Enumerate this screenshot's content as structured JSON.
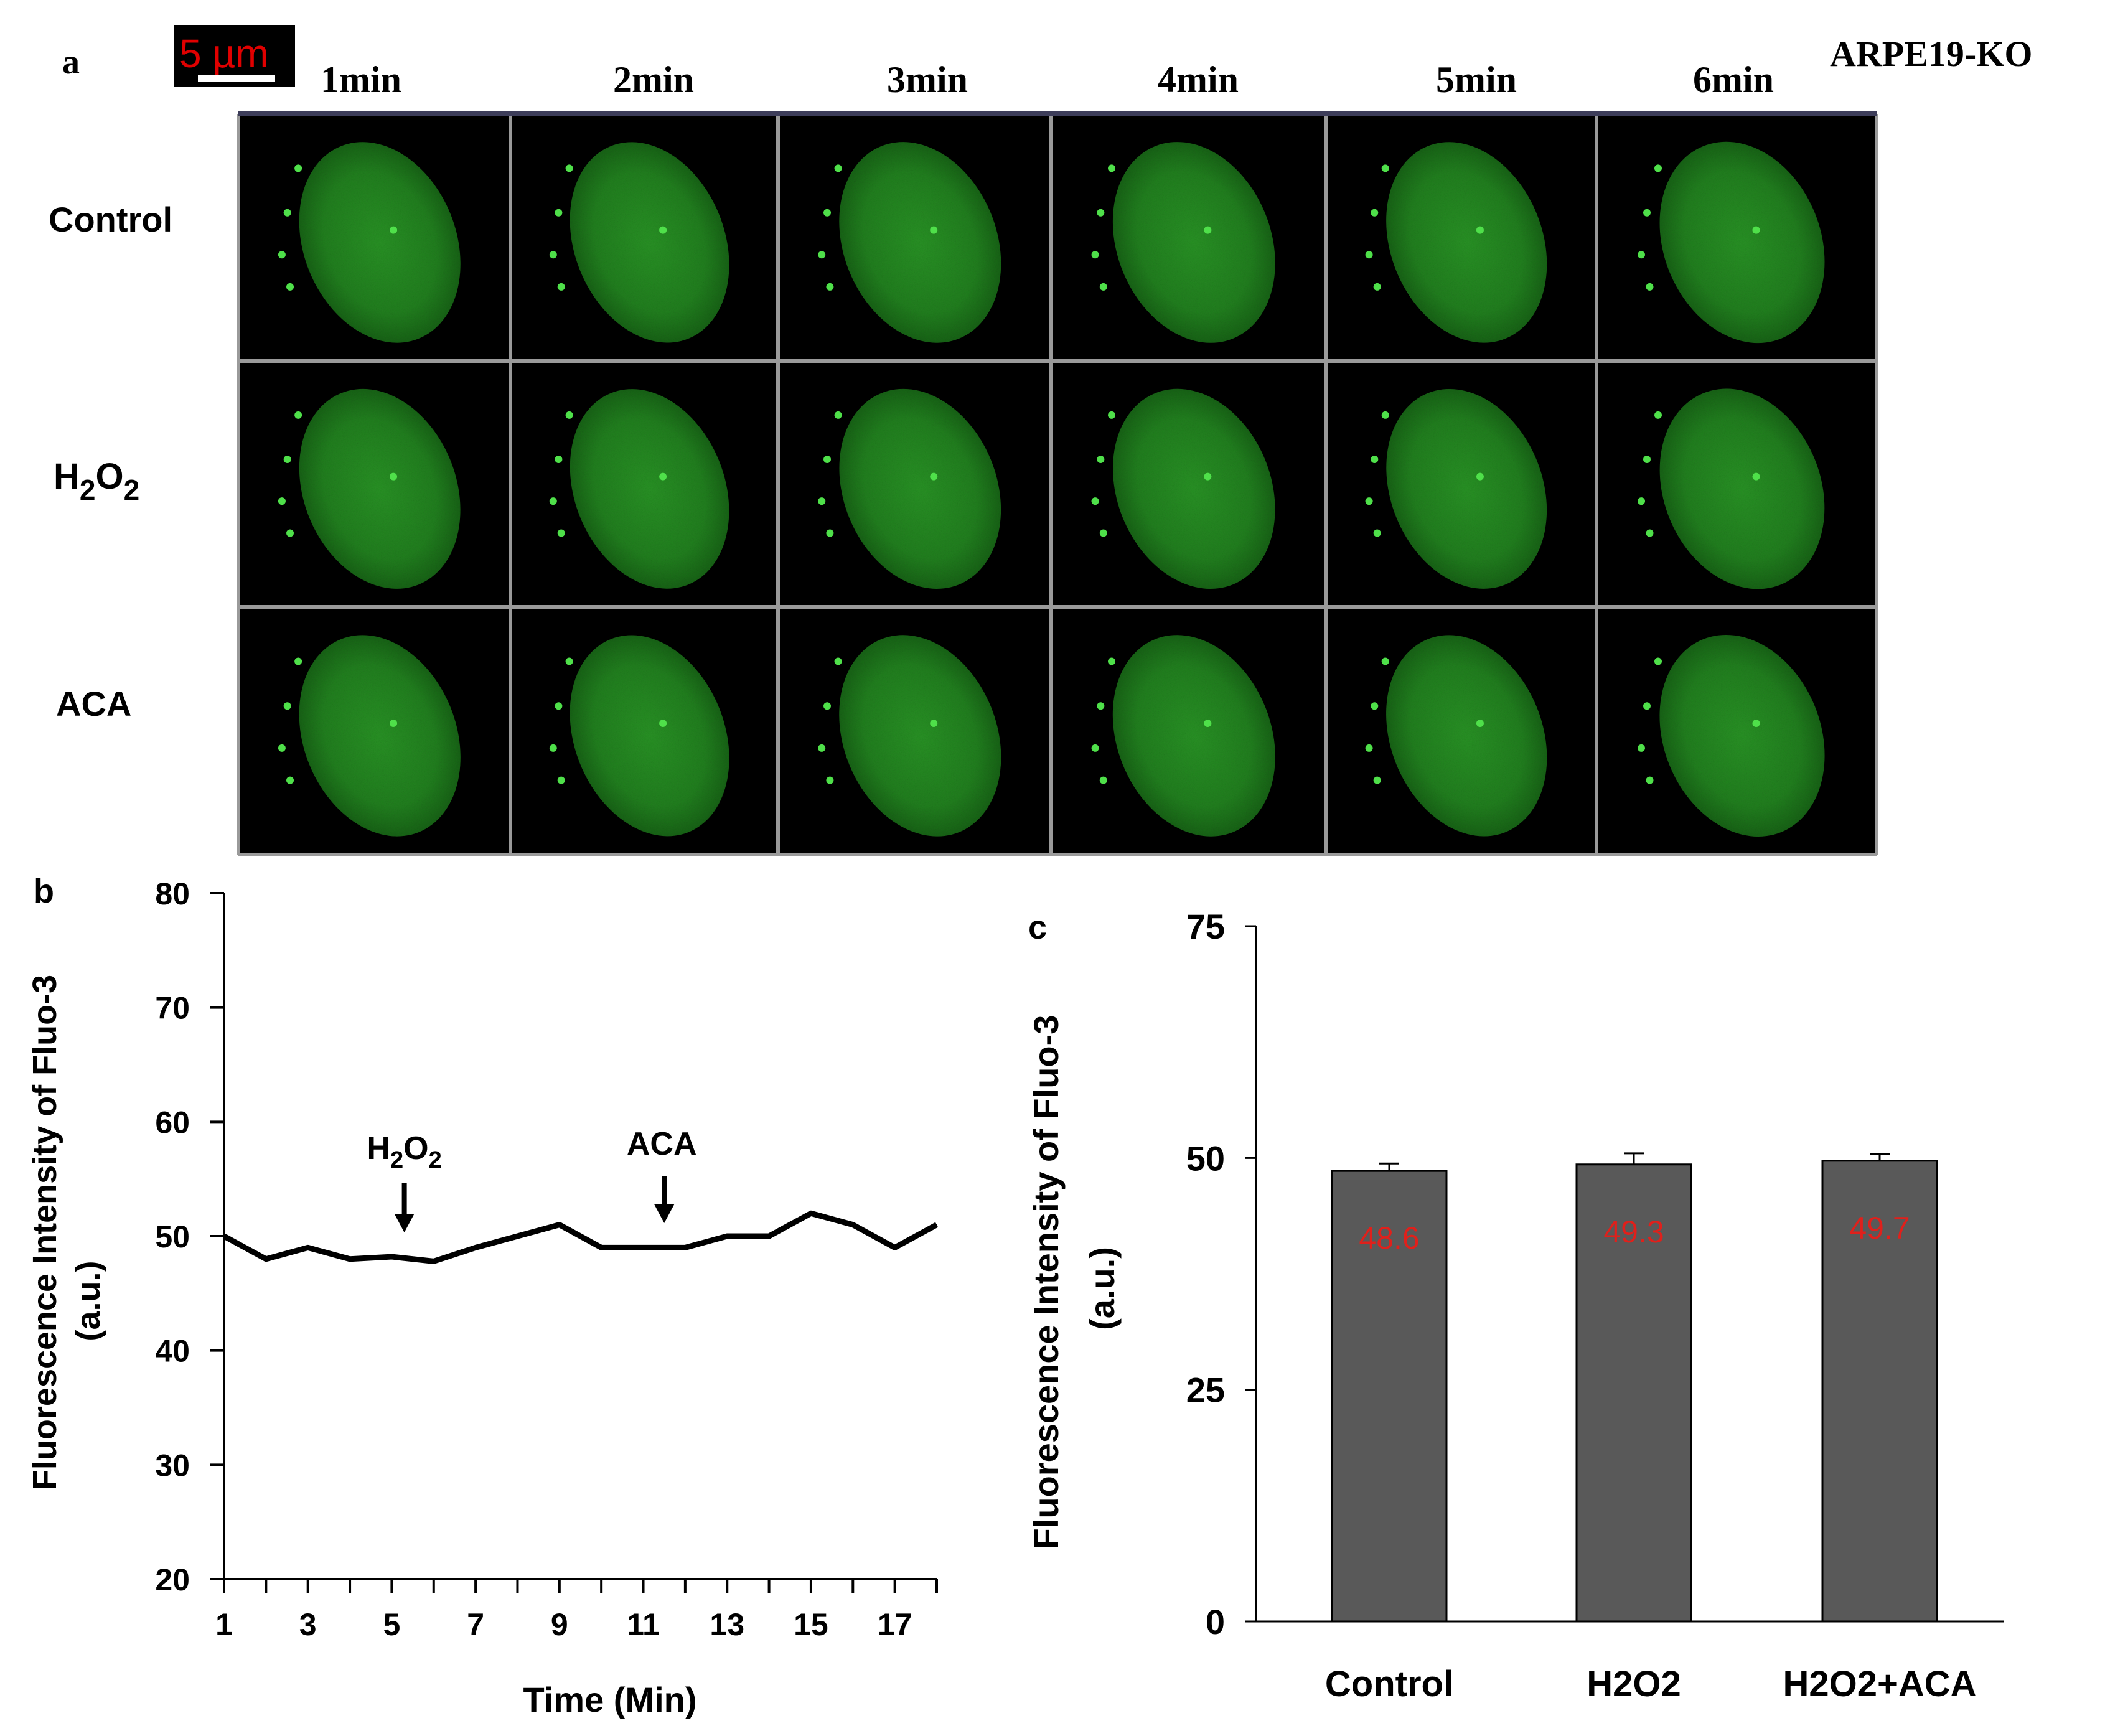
{
  "panel_a": {
    "panel_letter": "a",
    "cell_line": "ARPE19-KO",
    "scale_bar": "5 µm",
    "time_labels": [
      "1min",
      "2min",
      "3min",
      "4min",
      "5min",
      "6min"
    ],
    "row_labels": [
      {
        "main": "H",
        "parts": [
          {
            "t": "H"
          },
          {
            "t": "2",
            "sub": true
          },
          {
            "t": "O"
          },
          {
            "t": "2",
            "sub": true
          }
        ]
      },
      "ACA"
    ],
    "row_label_control": "Control",
    "h2o2": {
      "h": "H",
      "sub1": "2",
      "o": "O",
      "sub2": "2"
    },
    "row_label_aca": "ACA",
    "colors": {
      "background": "#000000",
      "cell": "#2f8a2a",
      "grid": "#9a9a9a"
    }
  },
  "chart_data": [
    {
      "type": "line",
      "panel_letter": "b",
      "x": [
        1,
        2,
        3,
        4,
        5,
        6,
        7,
        8,
        9,
        10,
        11,
        12,
        13,
        14,
        15,
        16,
        17,
        18
      ],
      "series": [
        {
          "values": [
            50,
            48,
            49,
            48,
            48.2,
            47.8,
            49,
            50,
            51,
            49,
            49,
            49,
            50,
            50,
            52,
            51,
            49,
            51
          ]
        }
      ],
      "xticks": [
        "1",
        "3",
        "5",
        "7",
        "9",
        "11",
        "13",
        "15",
        "17"
      ],
      "yticks": [
        "20",
        "30",
        "40",
        "50",
        "60",
        "70",
        "80"
      ],
      "ylim": [
        20,
        80
      ],
      "xlim": [
        1,
        18
      ],
      "xlabel": "Time (Min)",
      "ylabel_line1": "Fluorescence Intensity of  Fluo-3",
      "ylabel_line2": "(a.u.)",
      "annotations": [
        {
          "x": 5.3,
          "label_h": "H",
          "label_sub1": "2",
          "label_o": "O",
          "label_sub2": "2"
        },
        {
          "x": 11.5,
          "label": "ACA"
        }
      ],
      "line_color": "#000000"
    },
    {
      "type": "bar",
      "panel_letter": "c",
      "categories": [
        "Control",
        "H2O2",
        "H2O2+ACA"
      ],
      "values": [
        48.6,
        49.3,
        49.7
      ],
      "errors": [
        0.8,
        1.2,
        0.7
      ],
      "data_labels": [
        "48.6",
        "49.3",
        "49.7"
      ],
      "yticks": [
        "0",
        "25",
        "50",
        "75"
      ],
      "ylim": [
        0,
        75
      ],
      "ylabel_line1": "Fluorescence Intensity of Fluo-3",
      "ylabel_line2": "(a.u.)",
      "bar_color": "#595959",
      "label_color": "#e0201b"
    }
  ]
}
